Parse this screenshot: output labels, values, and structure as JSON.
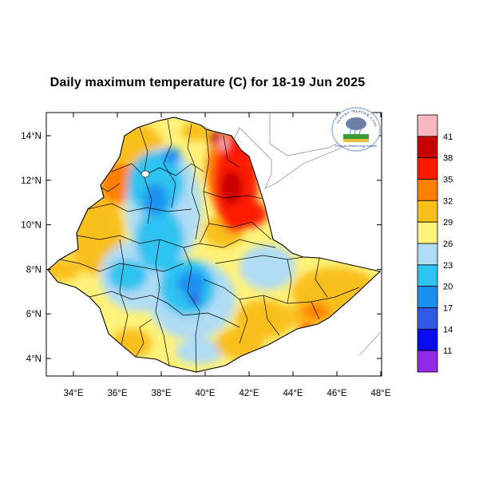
{
  "title": "Daily maximum temperature (C) for 18-19 Jun 2025",
  "x_ticks": [
    "34°E",
    "36°E",
    "38°E",
    "40°E",
    "42°E",
    "44°E",
    "46°E",
    "48°E"
  ],
  "y_ticks": [
    "14°N",
    "12°N",
    "10°N",
    "8°N",
    "6°N",
    "4°N"
  ],
  "colorbar": {
    "labels": [
      "41",
      "38",
      "35",
      "32",
      "29",
      "26",
      "23",
      "20",
      "17",
      "14",
      "11"
    ],
    "colors": [
      "#f6b7bd",
      "#c80000",
      "#ff1a00",
      "#ff8000",
      "#f9bf1a",
      "#fff27a",
      "#b0dcf4",
      "#2ec3f0",
      "#1a91f0",
      "#3259e6",
      "#0b0bf0",
      "#8f2ae6"
    ]
  },
  "map_data": {
    "type": "choropleth-map",
    "region": "Ethiopia",
    "variable": "Daily maximum temperature",
    "unit": "C",
    "lon_range": [
      33,
      48.2
    ],
    "lat_range": [
      3.2,
      15
    ],
    "hot_zones": "north-east Afar lowlands (35-38+)",
    "cool_zones": "central and western highlands (17-23)"
  },
  "logo": {
    "name": "ethiopian-meteorology-institute-logo",
    "text_top": "የኢትዮጵያ ሚቲዎሮሎጂ ኢንስቲትዩት",
    "text_bottom": "Ethiopian Meteorology Institute"
  }
}
